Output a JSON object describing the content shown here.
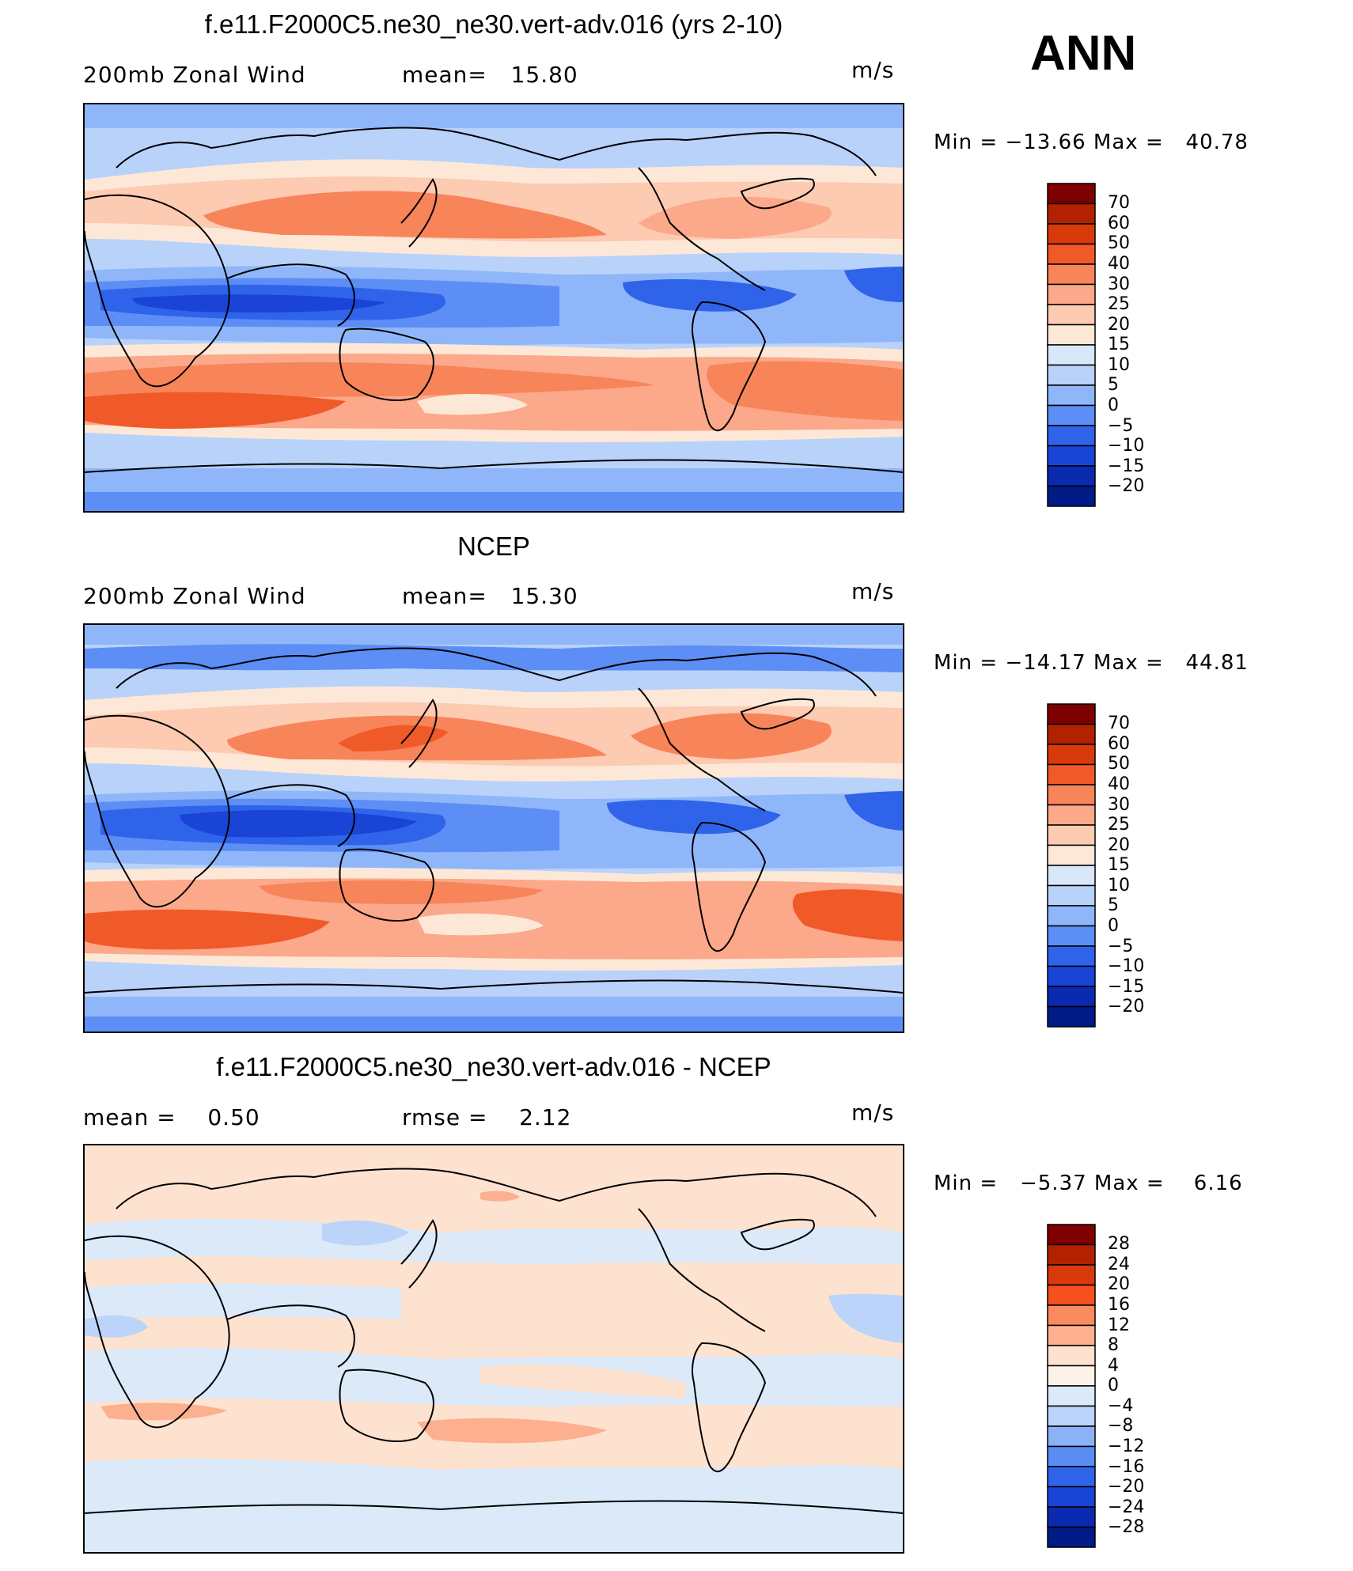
{
  "season": "ANN",
  "panels": [
    {
      "title": "f.e11.F2000C5.ne30_ne30.vert-adv.016 (yrs 2-10)",
      "left_text": "200mb Zonal Wind",
      "mid_text": "mean=   15.80",
      "units": "m/s",
      "minmax": "Min = −13.66 Max =   40.78",
      "colorbar_labels": [
        "70",
        "60",
        "50",
        "40",
        "30",
        "25",
        "20",
        "15",
        "10",
        "5",
        "0",
        "−5",
        "−10",
        "−15",
        "−20"
      ]
    },
    {
      "title": "NCEP",
      "left_text": "200mb Zonal Wind",
      "mid_text": "mean=   15.30",
      "units": "m/s",
      "minmax": "Min = −14.17 Max =   44.81",
      "colorbar_labels": [
        "70",
        "60",
        "50",
        "40",
        "30",
        "25",
        "20",
        "15",
        "10",
        "5",
        "0",
        "−5",
        "−10",
        "−15",
        "−20"
      ]
    },
    {
      "title": "f.e11.F2000C5.ne30_ne30.vert-adv.016 - NCEP",
      "left_text": "mean =    0.50",
      "mid_text": "rmse =    2.12",
      "units": "m/s",
      "minmax": "Min =   −5.37 Max =    6.16",
      "colorbar_labels": [
        "28",
        "24",
        "20",
        "16",
        "12",
        "8",
        "4",
        "0",
        "−4",
        "−8",
        "−12",
        "−16",
        "−20",
        "−24",
        "−28"
      ]
    }
  ],
  "colors": {
    "abs_scale": [
      "#7f0000",
      "#b22200",
      "#d93a0a",
      "#f05a28",
      "#f8845a",
      "#fca88a",
      "#fdcab2",
      "#fde8d8",
      "#d8e8f8",
      "#b8d2fa",
      "#90b6fa",
      "#5c8ef5",
      "#2f64ea",
      "#1a44d6",
      "#0a2aaf",
      "#001a86"
    ],
    "diff_scale": [
      "#7f0000",
      "#b22200",
      "#d93a0a",
      "#f5501e",
      "#fa8a60",
      "#fcb090",
      "#fde2d0",
      "#fdf2e8",
      "#dbe9f9",
      "#bcd4f9",
      "#8cb2f6",
      "#5b8ef3",
      "#2f64ea",
      "#1a44d6",
      "#0a2aaf",
      "#001a86"
    ]
  }
}
